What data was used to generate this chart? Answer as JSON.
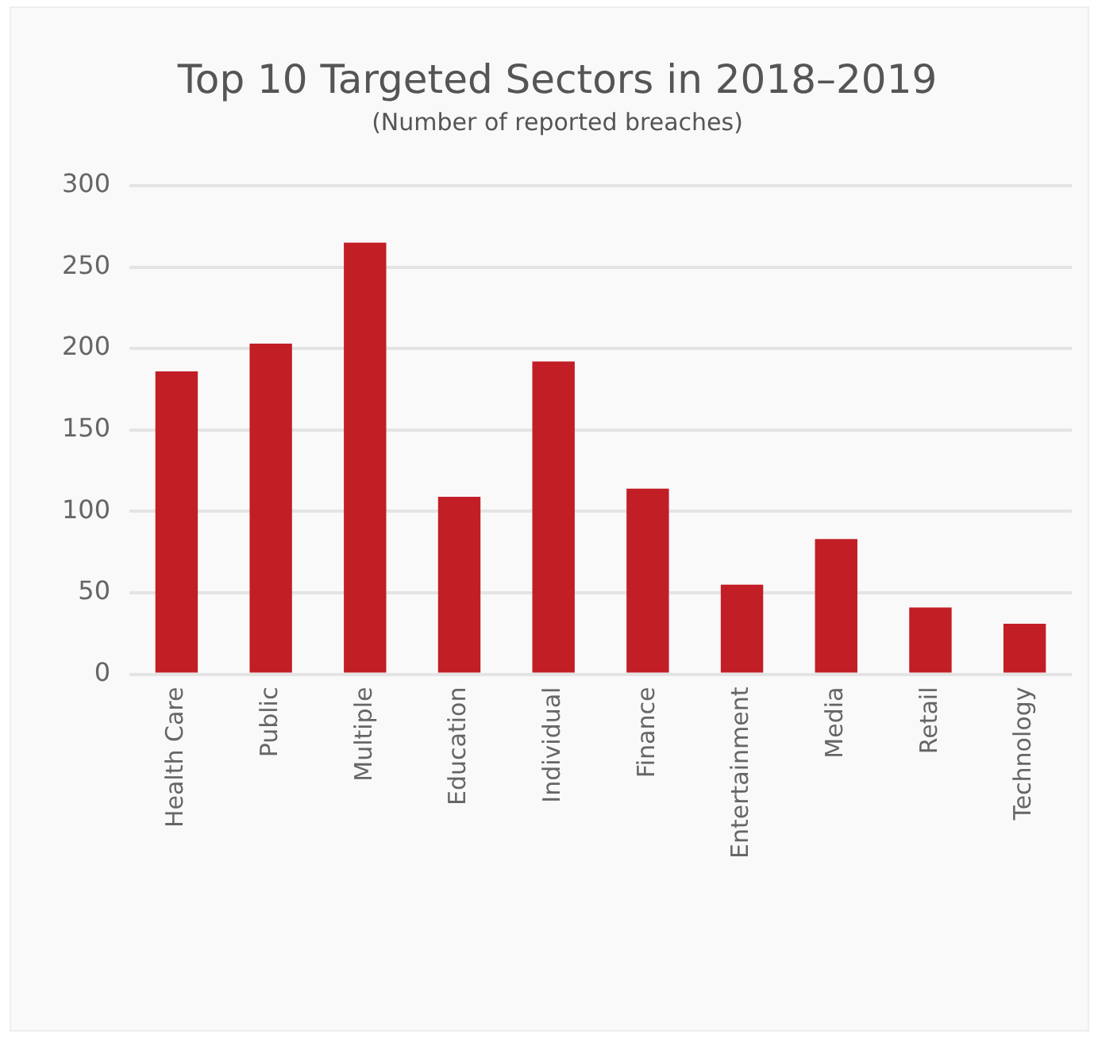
{
  "chart_data": {
    "type": "bar",
    "title": "Top 10 Targeted Sectors in 2018–2019",
    "subtitle": "(Number of reported breaches)",
    "categories": [
      "Health Care",
      "Public",
      "Multiple",
      "Education",
      "Individual",
      "Finance",
      "Entertainment",
      "Media",
      "Retail",
      "Technology"
    ],
    "values": [
      186,
      203,
      265,
      109,
      192,
      114,
      55,
      83,
      41,
      31
    ],
    "color": "#c21e26",
    "ylim": [
      0,
      300
    ],
    "yticks": [
      0,
      50,
      100,
      150,
      200,
      250,
      300
    ],
    "grid": "y"
  }
}
